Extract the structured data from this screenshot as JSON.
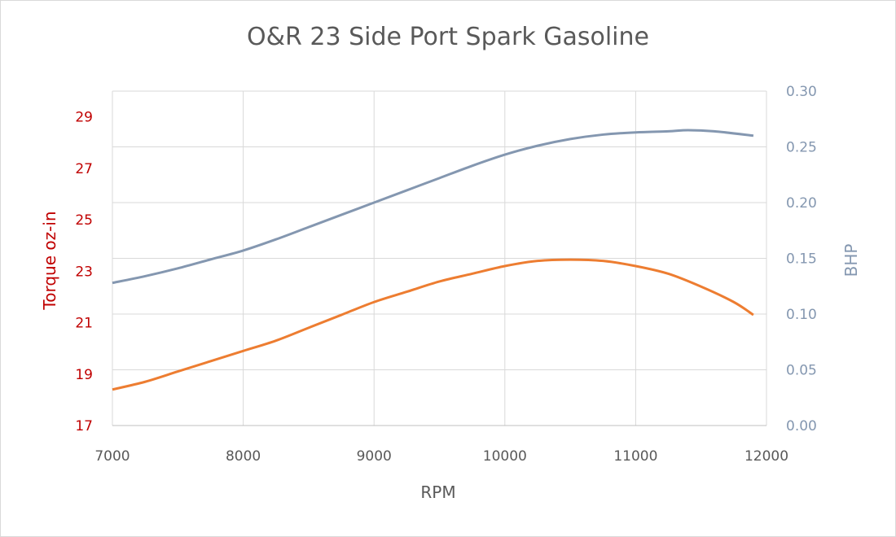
{
  "chart_data": {
    "type": "line",
    "title": "O&R 23 Side Port Spark Gasoline",
    "xlabel": "RPM",
    "ylabel_left": "Torque oz-in",
    "ylabel_right": "BHP",
    "xlim": [
      7000,
      12000
    ],
    "ylim_left": [
      17,
      30
    ],
    "ylim_right": [
      0,
      0.3
    ],
    "x_ticks": [
      "7000",
      "8000",
      "9000",
      "10000",
      "11000",
      "12000"
    ],
    "y_left_ticks": [
      "17",
      "19",
      "21",
      "23",
      "25",
      "27",
      "29"
    ],
    "y_right_ticks": [
      "0.00",
      "0.05",
      "0.10",
      "0.15",
      "0.20",
      "0.25",
      "0.30"
    ],
    "grid": true,
    "legend": "none",
    "colors": {
      "torque": "#ED7D31",
      "bhp": "#8497B0",
      "left_axis_text": "#C00000",
      "right_axis_text": "#8497B0",
      "grid": "#D9D9D9",
      "text": "#595959"
    },
    "series": [
      {
        "axis": "left",
        "x": [
          7000,
          7250,
          7500,
          7750,
          8000,
          8250,
          8500,
          8750,
          9000,
          9250,
          9500,
          9750,
          10000,
          10250,
          10500,
          10750,
          11000,
          11250,
          11500,
          11750,
          11900
        ],
        "values": [
          18.4,
          18.7,
          19.1,
          19.5,
          19.9,
          20.3,
          20.8,
          21.3,
          21.8,
          22.2,
          22.6,
          22.9,
          23.2,
          23.4,
          23.45,
          23.4,
          23.2,
          22.9,
          22.4,
          21.8,
          21.3
        ]
      },
      {
        "axis": "right",
        "x": [
          7000,
          7250,
          7500,
          7750,
          8000,
          8250,
          8500,
          8750,
          9000,
          9250,
          9500,
          9750,
          10000,
          10250,
          10500,
          10750,
          11000,
          11250,
          11400,
          11600,
          11900
        ],
        "values": [
          0.128,
          0.134,
          0.141,
          0.149,
          0.157,
          0.167,
          0.178,
          0.189,
          0.2,
          0.211,
          0.222,
          0.233,
          0.243,
          0.251,
          0.257,
          0.261,
          0.263,
          0.264,
          0.265,
          0.264,
          0.26
        ]
      }
    ]
  }
}
